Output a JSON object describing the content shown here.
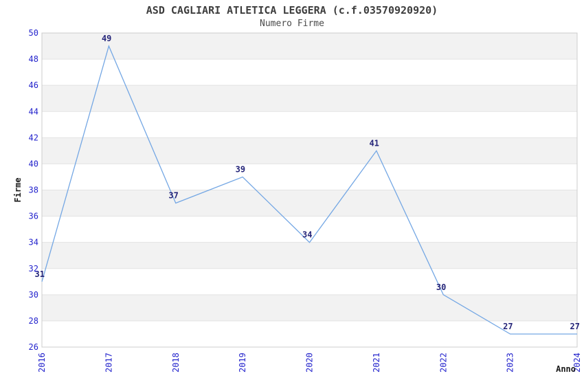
{
  "chart_data": {
    "type": "line",
    "title": "ASD CAGLIARI ATLETICA LEGGERA (c.f.03570920920)",
    "subtitle": "Numero Firme",
    "xlabel": "Anno",
    "ylabel": "Firme",
    "x": [
      "2016",
      "2017",
      "2018",
      "2019",
      "2020",
      "2021",
      "2022",
      "2023",
      "2024"
    ],
    "series": [
      {
        "name": "Firme",
        "values": [
          31,
          49,
          37,
          39,
          34,
          41,
          30,
          27,
          27
        ]
      }
    ],
    "ylim": [
      26,
      50
    ],
    "ytick_step": 2,
    "grid": "horizontal alternating bands of 2 units (gray from 48-50 downward every other band)",
    "legend_position": "none",
    "data_labels": true
  },
  "colors": {
    "line": "#74a7e4",
    "tick_label": "#2323cc",
    "data_label": "#26267a",
    "band": "#f2f2f2",
    "grid": "#e3e3e3",
    "border": "#cccccc",
    "title": "#3d3d3d",
    "subtitle": "#4a4a4a",
    "axis_title": "#1a1a1a",
    "background": "#ffffff"
  }
}
